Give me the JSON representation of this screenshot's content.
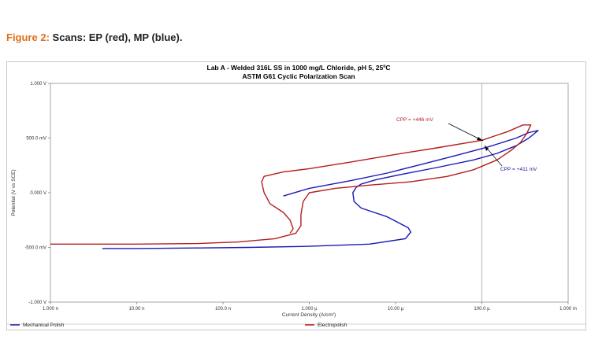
{
  "caption": {
    "label": "Figure 2:",
    "text": " Scans: EP (red), MP (blue)."
  },
  "chart_data": {
    "type": "line",
    "title": "Lab A - Welded 316L SS in 1000 mg/L Chloride, pH 5, 25ºC",
    "subtitle": "ASTM G61 Cyclic Polarization Scan",
    "xlabel": "Current Density (A/cm²)",
    "ylabel": "Potential (V vs SCE)",
    "xscale": "log",
    "xlim": [
      1e-09,
      0.001
    ],
    "ylim": [
      -1.0,
      1.0
    ],
    "xticks": [
      {
        "v": 1e-09,
        "label": "1.000 n"
      },
      {
        "v": 1e-08,
        "label": "10.00 n"
      },
      {
        "v": 1e-07,
        "label": "100.0 n"
      },
      {
        "v": 1e-06,
        "label": "1.000 µ"
      },
      {
        "v": 1e-05,
        "label": "10.00 µ"
      },
      {
        "v": 0.0001,
        "label": "100.0 µ"
      },
      {
        "v": 0.001,
        "label": "1.000 m"
      }
    ],
    "yticks": [
      {
        "v": 1.0,
        "label": "1.000 V"
      },
      {
        "v": 0.5,
        "label": "500.0 mV"
      },
      {
        "v": 0.0,
        "label": "0.000 V"
      },
      {
        "v": -0.5,
        "label": "-500.0 mV"
      },
      {
        "v": -1.0,
        "label": "-1.000 V"
      }
    ],
    "vline_x": 0.0001,
    "series": [
      {
        "name": "Mechanical Polish",
        "color": "#1a1ab4",
        "points": [
          [
            4e-09,
            -0.51
          ],
          [
            1e-08,
            -0.51
          ],
          [
            5e-08,
            -0.505
          ],
          [
            2e-07,
            -0.5
          ],
          [
            1e-06,
            -0.49
          ],
          [
            5e-06,
            -0.47
          ],
          [
            1.3e-05,
            -0.42
          ],
          [
            1.5e-05,
            -0.36
          ],
          [
            1.4e-05,
            -0.32
          ],
          [
            8e-06,
            -0.22
          ],
          [
            4e-06,
            -0.14
          ],
          [
            3.3e-06,
            -0.08
          ],
          [
            3.2e-06,
            0.0
          ],
          [
            3.5e-06,
            0.05
          ],
          [
            4e-06,
            0.08
          ],
          [
            6e-06,
            0.12
          ],
          [
            1.2e-05,
            0.17
          ],
          [
            3e-05,
            0.23
          ],
          [
            8e-05,
            0.3
          ],
          [
            0.00015,
            0.36
          ],
          [
            0.00025,
            0.43
          ],
          [
            0.00035,
            0.5
          ],
          [
            0.00045,
            0.57
          ],
          [
            0.00035,
            0.55
          ],
          [
            0.00025,
            0.5
          ],
          [
            0.00012,
            0.42
          ],
          [
            5e-05,
            0.34
          ],
          [
            2e-05,
            0.26
          ],
          [
            8e-06,
            0.18
          ],
          [
            3e-06,
            0.11
          ],
          [
            1e-06,
            0.04
          ],
          [
            5e-07,
            -0.03
          ]
        ]
      },
      {
        "name": "Electropolish",
        "color": "#b41e1e",
        "points": [
          [
            1e-09,
            -0.47
          ],
          [
            1e-08,
            -0.47
          ],
          [
            5e-08,
            -0.465
          ],
          [
            1.5e-07,
            -0.45
          ],
          [
            4e-07,
            -0.42
          ],
          [
            7e-07,
            -0.37
          ],
          [
            8e-07,
            -0.3
          ],
          [
            8e-07,
            -0.2
          ],
          [
            8.5e-07,
            -0.08
          ],
          [
            1e-06,
            0.0
          ],
          [
            2e-06,
            0.04
          ],
          [
            5e-06,
            0.07
          ],
          [
            1.5e-05,
            0.1
          ],
          [
            4e-05,
            0.15
          ],
          [
            8e-05,
            0.21
          ],
          [
            0.00015,
            0.3
          ],
          [
            0.00022,
            0.39
          ],
          [
            0.00028,
            0.46
          ],
          [
            0.00033,
            0.54
          ],
          [
            0.00037,
            0.62
          ],
          [
            0.0003,
            0.62
          ],
          [
            0.0002,
            0.56
          ],
          [
            0.0001,
            0.48
          ],
          [
            3e-05,
            0.41
          ],
          [
            1e-05,
            0.35
          ],
          [
            3e-06,
            0.28
          ],
          [
            1e-06,
            0.22
          ],
          [
            5e-07,
            0.19
          ],
          [
            3e-07,
            0.15
          ],
          [
            2.8e-07,
            0.1
          ],
          [
            3e-07,
            0.0
          ],
          [
            3.5e-07,
            -0.1
          ],
          [
            5e-07,
            -0.18
          ],
          [
            6e-07,
            -0.25
          ],
          [
            6.5e-07,
            -0.33
          ],
          [
            6e-07,
            -0.37
          ]
        ]
      }
    ],
    "annotations": [
      {
        "text": "CPP = +446 mV",
        "color": "#b41e1e"
      },
      {
        "text": "CPP = +411 mV",
        "color": "#1a1ab4"
      }
    ],
    "legend": "bottom"
  }
}
